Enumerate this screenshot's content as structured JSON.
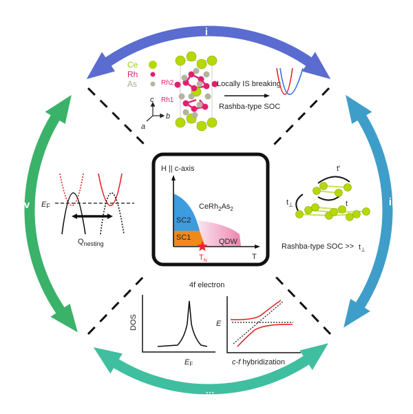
{
  "cycle": {
    "labels": [
      "i",
      "ii",
      "iii",
      "iv"
    ],
    "colors": [
      "#5a6ccf",
      "#3e9ec9",
      "#3fbf9f",
      "#3bb26a"
    ]
  },
  "top_panel": {
    "legend": [
      {
        "label": "Ce",
        "color": "#b5d80a"
      },
      {
        "label": "Rh",
        "color": "#e0206e"
      },
      {
        "label": "As",
        "color": "#b3b39f"
      }
    ],
    "site_labels": [
      "Rh2",
      "Rh1"
    ],
    "axes": {
      "c": "c",
      "a": "a",
      "b": "b"
    },
    "arrow_top": "Locally IS breaking",
    "arrow_bottom": "Rashba-type SOC"
  },
  "center_panel": {
    "y_axis": "H || c-axis",
    "x_axis": "T",
    "compound": "CeRh",
    "compound_sub1": "2",
    "compound_mid": "As",
    "compound_sub2": "2",
    "phases": {
      "sc2": "SC2",
      "sc1": "SC1",
      "qdw": "QDW"
    },
    "tn": "T",
    "tn_sub": "N",
    "colors": {
      "sc2": "#3d9be0",
      "sc1": "#f0891c",
      "qdw": "#f3a9c8",
      "star": "#f02030"
    }
  },
  "right_panel": {
    "t_prime": "t′",
    "t": "t",
    "t_perp": "t",
    "t_perp_sub": "⊥",
    "caption": "Rashba-type SOC >>",
    "caption_t": "t",
    "caption_t_sub": "⊥"
  },
  "left_panel": {
    "ef": "E",
    "ef_sub": "F",
    "q": "Q",
    "q_sub": "nesting"
  },
  "bottom_panel": {
    "title": "4f electron",
    "dos_ylabel": "DOS",
    "dos_xlabel": "E",
    "dos_xlabel_sub": "F",
    "hyb_ylabel": "E",
    "hyb_xlabel_c": "c-f",
    "hyb_xlabel": " hybridization"
  }
}
